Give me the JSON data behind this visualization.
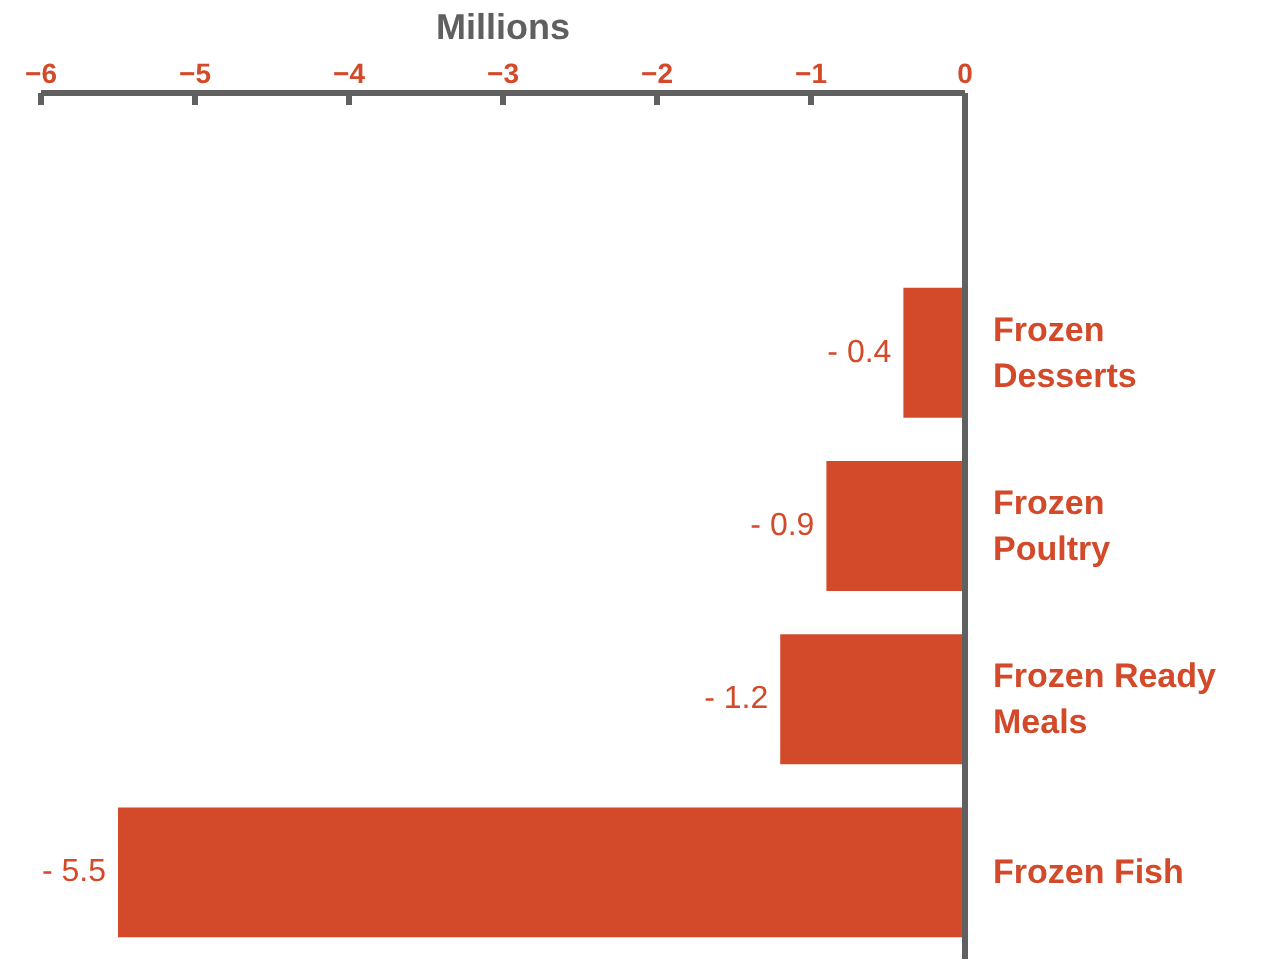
{
  "chart_data": {
    "type": "bar",
    "orientation": "horizontal",
    "xlabel": "Millions",
    "categories": [
      null,
      "Frozen Desserts",
      "Frozen Poultry",
      "Frozen Ready Meals",
      "Frozen Fish"
    ],
    "values": [
      null,
      -0.4,
      -0.9,
      -1.2,
      -5.5
    ],
    "value_labels": [
      null,
      "- 0.4",
      "- 0.9",
      "- 1.2",
      "- 5.5"
    ],
    "color": "#d24a2a",
    "xlim": [
      -6,
      0
    ],
    "xticks": [
      -6,
      -5,
      -4,
      -3,
      -2,
      -1,
      0
    ],
    "grid": false
  }
}
